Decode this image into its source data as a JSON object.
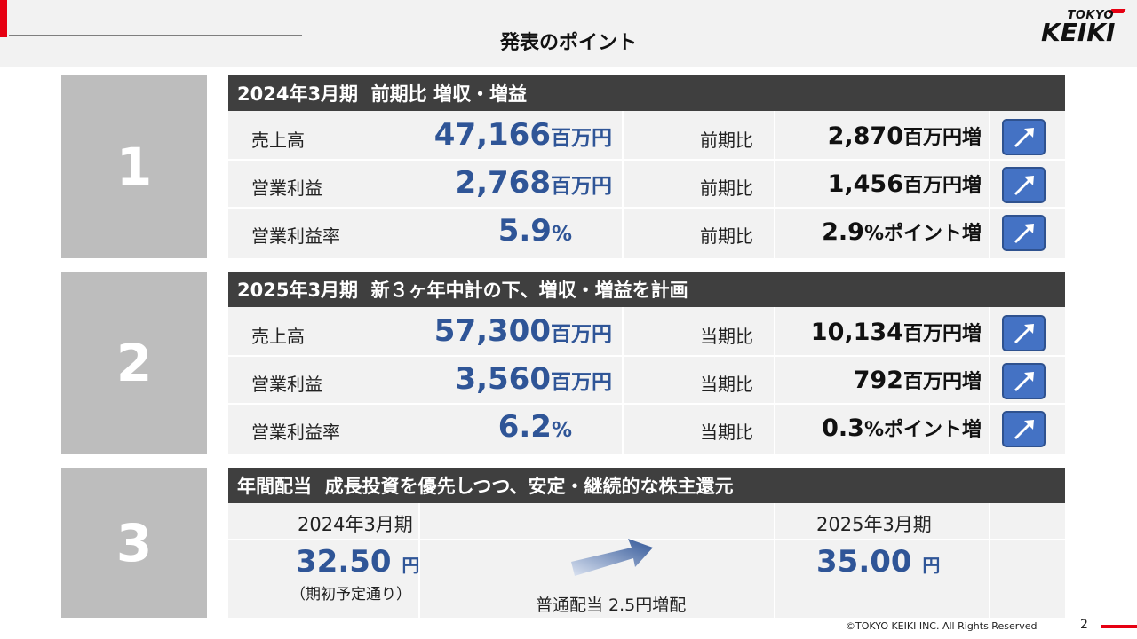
{
  "header": {
    "title": "発表のポイント",
    "logo_small": "TOKYO",
    "logo_big": "KEIKI",
    "brand_color": "#e60012"
  },
  "sections": [
    {
      "number": "1",
      "heading": "2024年3月期  前期比 増収・増益",
      "rows": [
        {
          "label": "売上高",
          "value": "47,166",
          "value_unit": "百万円",
          "cmp_label": "前期比",
          "delta": "2,870",
          "delta_unit": "百万円増",
          "trend": "up-arrow-icon"
        },
        {
          "label": "営業利益",
          "value": "2,768",
          "value_unit": "百万円",
          "cmp_label": "前期比",
          "delta": "1,456",
          "delta_unit": "百万円増",
          "trend": "up-arrow-icon"
        },
        {
          "label": "営業利益率",
          "value": "5.9",
          "value_unit": "%",
          "cmp_label": "前期比",
          "delta": "2.9",
          "delta_unit": "%ポイント増",
          "trend": "up-arrow-icon"
        }
      ]
    },
    {
      "number": "2",
      "heading": "2025年3月期  新３ヶ年中計の下、増収・増益を計画",
      "rows": [
        {
          "label": "売上高",
          "value": "57,300",
          "value_unit": "百万円",
          "cmp_label": "当期比",
          "delta": "10,134",
          "delta_unit": "百万円増",
          "trend": "up-arrow-icon"
        },
        {
          "label": "営業利益",
          "value": "3,560",
          "value_unit": "百万円",
          "cmp_label": "当期比",
          "delta": "792",
          "delta_unit": "百万円増",
          "trend": "up-arrow-icon"
        },
        {
          "label": "営業利益率",
          "value": "6.2",
          "value_unit": "%",
          "cmp_label": "当期比",
          "delta": "0.3",
          "delta_unit": "%ポイント増",
          "trend": "up-arrow-icon"
        }
      ]
    }
  ],
  "dividend": {
    "number": "3",
    "heading": "年間配当  成長投資を優先しつつ、安定・継続的な株主還元",
    "prev_year": "2024年3月期",
    "prev_amount": "32.50",
    "prev_unit": "円",
    "prev_note": "（期初予定通り）",
    "next_year": "2025年3月期",
    "next_amount": "35.00",
    "next_unit": "円",
    "increase_note": "普通配当 2.5円増配"
  },
  "footer": {
    "copyright": "©TOKYO KEIKI INC. All Rights Reserved",
    "page": "2"
  },
  "colors": {
    "value_blue": "#2f5597",
    "header_dark": "#3f3f3f",
    "number_gray": "#bdbdbd",
    "arrow_blue": "#4472c4"
  }
}
